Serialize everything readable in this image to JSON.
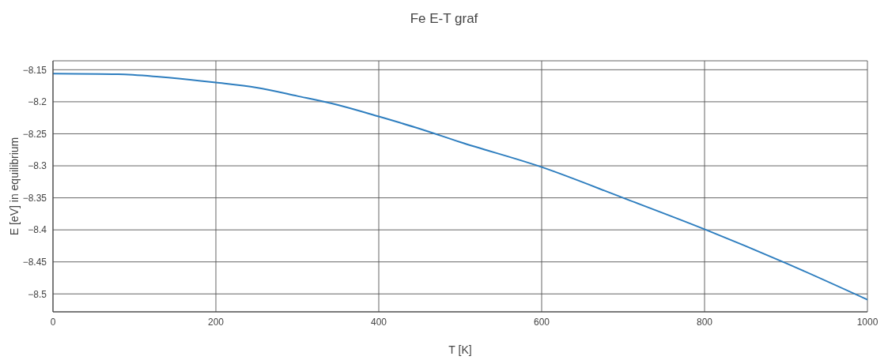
{
  "chart_data": {
    "type": "line",
    "title": "Fe E-T graf",
    "xlabel": "T [K]",
    "ylabel": "E [eV] in equilibrium",
    "x": [
      0,
      80,
      130,
      200,
      250,
      300,
      350,
      400,
      450,
      500,
      600,
      700,
      800,
      900,
      1000
    ],
    "series": [
      {
        "color": "#2e7ebf",
        "values": [
          -8.156,
          -8.157,
          -8.161,
          -8.17,
          -8.178,
          -8.191,
          -8.205,
          -8.223,
          -8.242,
          -8.263,
          -8.302,
          -8.35,
          -8.399,
          -8.452,
          -8.509
        ]
      }
    ],
    "xlim": [
      0,
      1000
    ],
    "xticks": [
      0,
      200,
      400,
      600,
      800,
      1000
    ],
    "ylim": [
      -8.528,
      -8.136
    ],
    "yticks": [
      -8.5,
      -8.45,
      -8.4,
      -8.35,
      -8.3,
      -8.25,
      -8.2,
      -8.15
    ],
    "grid": true,
    "legend": false
  }
}
